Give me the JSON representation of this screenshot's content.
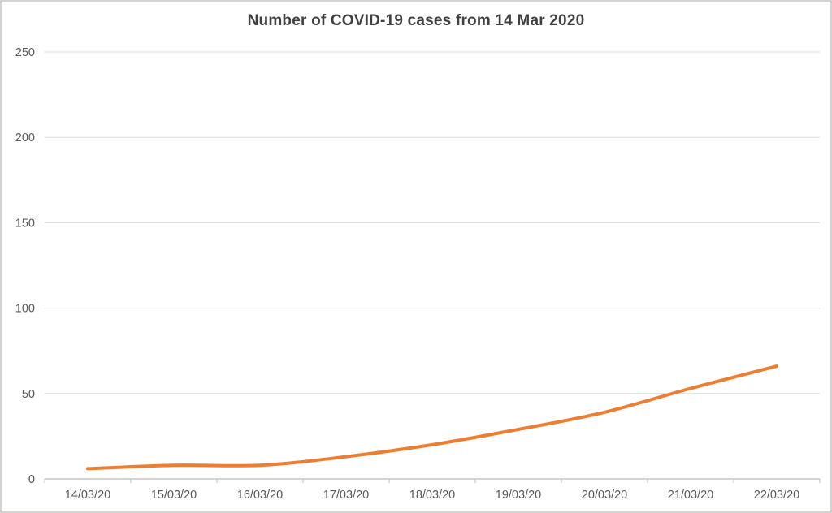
{
  "chart_data": {
    "type": "line",
    "title": "Number of COVID-19 cases from 14 Mar 2020",
    "categories": [
      "14/03/20",
      "15/03/20",
      "16/03/20",
      "17/03/20",
      "18/03/20",
      "19/03/20",
      "20/03/20",
      "21/03/20",
      "22/03/20"
    ],
    "values": [
      6,
      8,
      8,
      13,
      20,
      29,
      39,
      53,
      66
    ],
    "xlabel": "",
    "ylabel": "",
    "ylim": [
      0,
      250
    ],
    "y_ticks": [
      0,
      50,
      100,
      150,
      200,
      250
    ],
    "grid": true,
    "legend": "none",
    "smooth": true,
    "colors": {
      "line": "#ED7D31",
      "gridline": "#D9D9D9",
      "axis": "#C8C6C6",
      "tick_label": "#595959",
      "title": "#404040",
      "frame_border": "#D5D2D2",
      "background": "#FFFFFF"
    }
  }
}
